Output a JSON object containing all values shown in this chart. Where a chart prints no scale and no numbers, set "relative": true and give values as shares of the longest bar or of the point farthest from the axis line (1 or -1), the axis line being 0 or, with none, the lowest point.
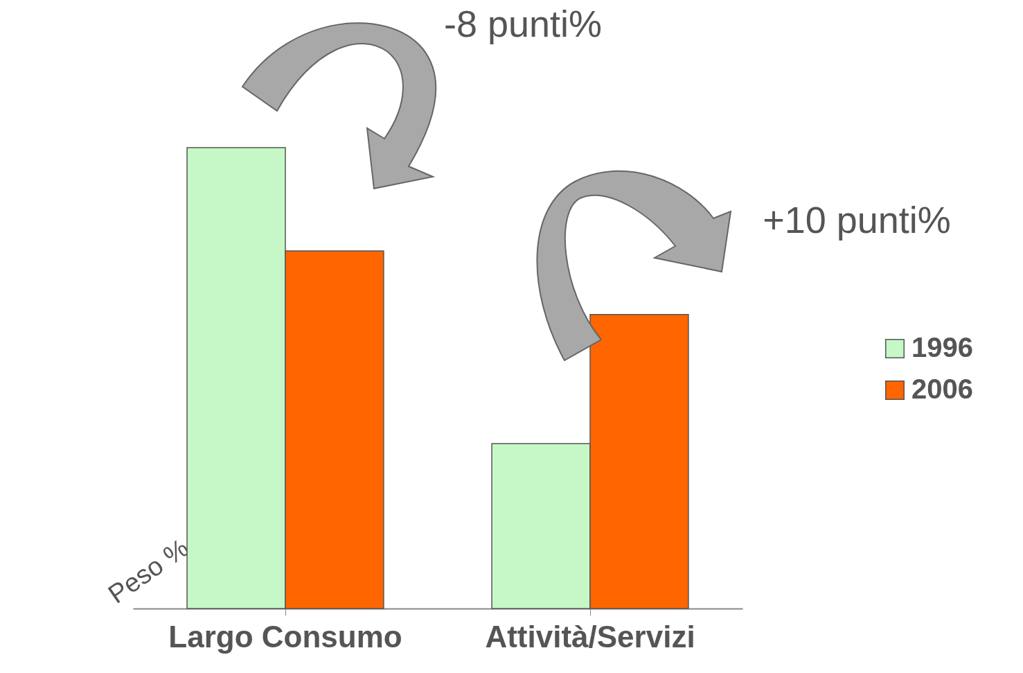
{
  "chart_data": {
    "type": "bar",
    "relative": true,
    "ylabel": "Peso %",
    "categories": [
      "Largo Consumo",
      "Attività/Servizi"
    ],
    "series": [
      {
        "name": "1996",
        "color": "#c6f7c6",
        "values": [
          1,
          0.358
        ]
      },
      {
        "name": "2006",
        "color": "#ff6600",
        "values": [
          0.776,
          0.638
        ]
      }
    ],
    "annotations": [
      "-8 punti%",
      "+10 punti%"
    ],
    "legend": "right",
    "grid": false
  }
}
